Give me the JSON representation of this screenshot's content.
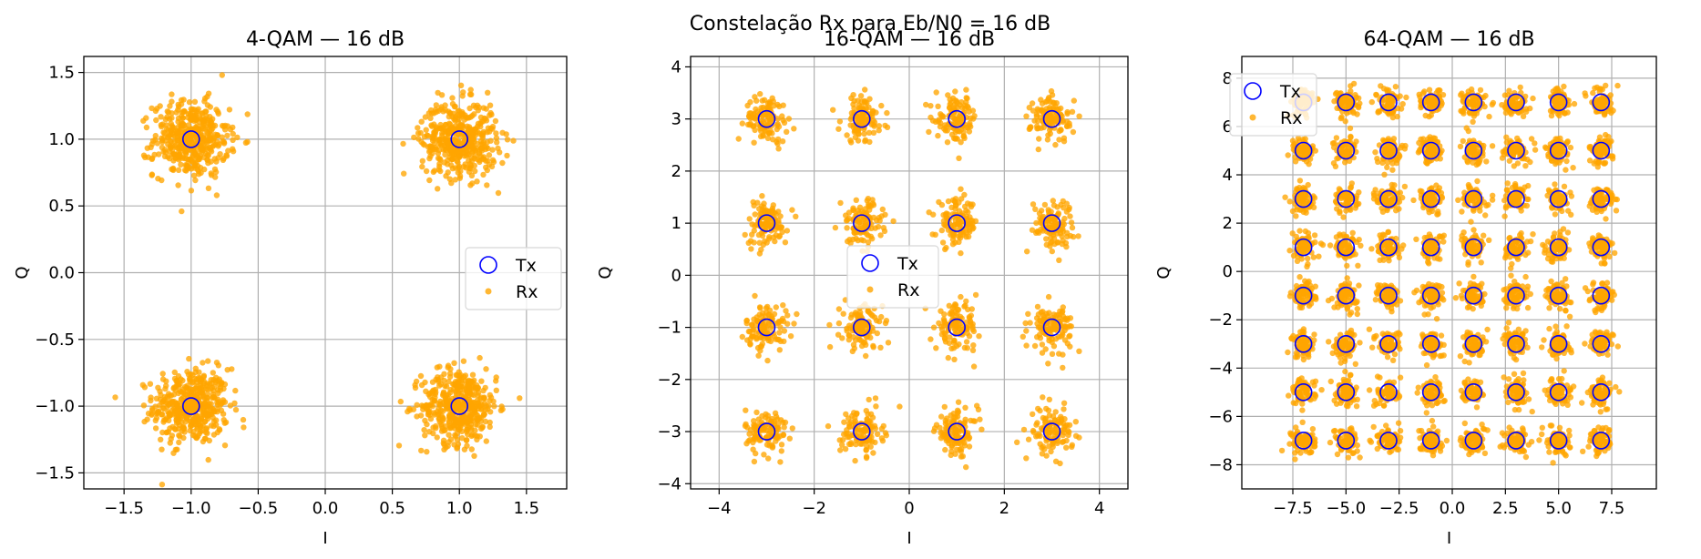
{
  "figure": {
    "suptitle": "Constelação Rx para Eb/N0 = 16 dB"
  },
  "colors": {
    "rx": "#ffa500",
    "tx": "#0000ff",
    "grid": "#b0b0b0"
  },
  "chart_data": [
    {
      "type": "scatter",
      "title": "4-QAM — 16 dB",
      "xlabel": "I",
      "ylabel": "Q",
      "xlim": [
        -1.8,
        1.8
      ],
      "ylim": [
        -1.62,
        1.62
      ],
      "xticks": [
        -1.5,
        -1.0,
        -0.5,
        0.0,
        0.5,
        1.0,
        1.5
      ],
      "yticks": [
        -1.5,
        -1.0,
        -0.5,
        0.0,
        0.5,
        1.0,
        1.5
      ],
      "tick_decimals": 1,
      "grid": true,
      "legend_position": "center-right",
      "constellation_levels": [
        -1,
        1
      ],
      "noise_std": 0.14,
      "series": [
        {
          "name": "Tx",
          "marker": "open-circle",
          "color": "#0000ff"
        },
        {
          "name": "Rx",
          "marker": "filled-dot",
          "color": "#ffa500"
        }
      ]
    },
    {
      "type": "scatter",
      "title": "16-QAM — 16 dB",
      "xlabel": "I",
      "ylabel": "Q",
      "xlim": [
        -4.6,
        4.6
      ],
      "ylim": [
        -4.1,
        4.2
      ],
      "xticks": [
        -4,
        -2,
        0,
        2,
        4
      ],
      "yticks": [
        -4,
        -3,
        -2,
        -1,
        0,
        1,
        2,
        3,
        4
      ],
      "tick_decimals": 0,
      "grid": true,
      "legend_position": "center",
      "constellation_levels": [
        -3,
        -1,
        1,
        3
      ],
      "noise_std": 0.22,
      "series": [
        {
          "name": "Tx",
          "marker": "open-circle",
          "color": "#0000ff"
        },
        {
          "name": "Rx",
          "marker": "filled-dot",
          "color": "#ffa500"
        }
      ]
    },
    {
      "type": "scatter",
      "title": "64-QAM — 16 dB",
      "xlabel": "I",
      "ylabel": "Q",
      "xlim": [
        -9.9,
        9.6
      ],
      "ylim": [
        -9.0,
        8.9
      ],
      "xticks": [
        -7.5,
        -5.0,
        -2.5,
        0.0,
        2.5,
        5.0,
        7.5
      ],
      "yticks": [
        -8,
        -6,
        -4,
        -2,
        0,
        2,
        4,
        6,
        8
      ],
      "tick_decimals_x": 1,
      "tick_decimals_y": 0,
      "grid": true,
      "legend_position": "top-left",
      "constellation_levels": [
        -7,
        -5,
        -3,
        -1,
        1,
        3,
        5,
        7
      ],
      "noise_std": 0.28,
      "series": [
        {
          "name": "Tx",
          "marker": "open-circle",
          "color": "#0000ff"
        },
        {
          "name": "Rx",
          "marker": "filled-dot",
          "color": "#ffa500"
        }
      ]
    }
  ]
}
